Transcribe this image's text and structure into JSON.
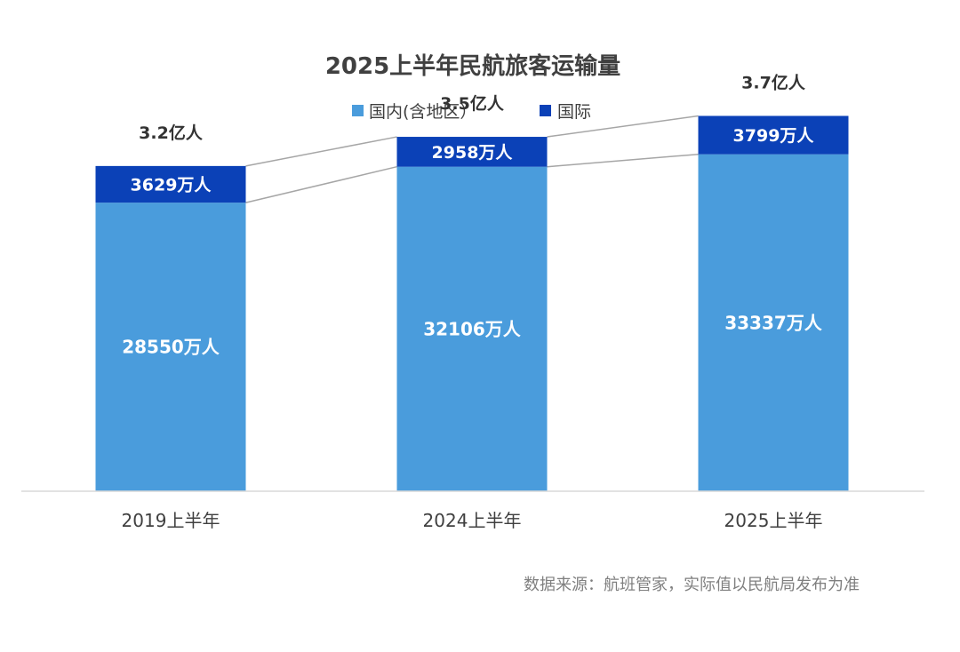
{
  "chart_data": {
    "type": "bar",
    "stacked": true,
    "title": "2025上半年民航旅客运输量",
    "categories": [
      "2019上半年",
      "2024上半年",
      "2025上半年"
    ],
    "series": [
      {
        "name": "国内(含地区）",
        "color": "#4a9cdc",
        "values": [
          28550,
          32106,
          33337
        ],
        "labels": [
          "28550万人",
          "32106万人",
          "33337万人"
        ]
      },
      {
        "name": "国际",
        "color": "#0b41b7",
        "values": [
          3629,
          2958,
          3799
        ],
        "labels": [
          "3629万人",
          "2958万人",
          "3799万人"
        ]
      }
    ],
    "totals": [
      "3.2亿人",
      "3.5亿人",
      "3.7亿人"
    ],
    "unit": "万人",
    "ylim": [
      0,
      45000
    ],
    "legend_position": "top-center",
    "grid": false,
    "xlabel": "",
    "ylabel": ""
  },
  "source_note": "数据来源：航班管家，实际值以民航局发布为准",
  "colors": {
    "connector": "#a6a6a6",
    "axis": "#d9d9d9"
  }
}
